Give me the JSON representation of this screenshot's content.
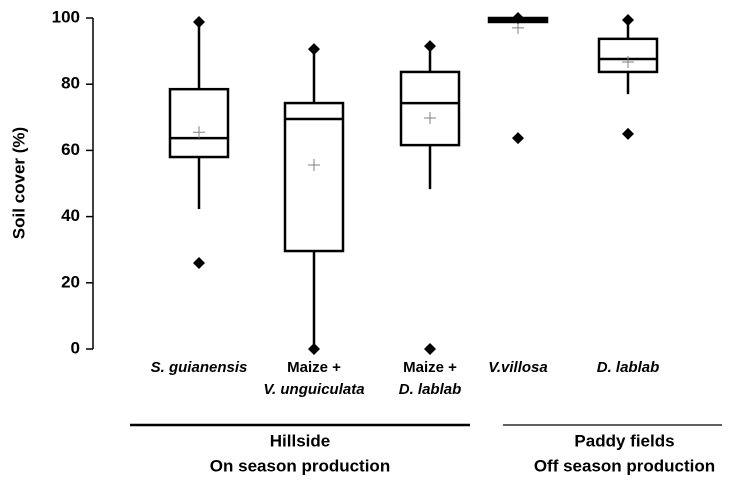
{
  "chart_data": {
    "type": "box",
    "y_label": "Soil cover (%)",
    "ylim": [
      0,
      100
    ],
    "yticks": [
      0,
      20,
      40,
      60,
      80,
      100
    ],
    "color": "#000000",
    "mean_color": "#808080",
    "categories": [
      [
        "S. guianensis"
      ],
      [
        "Maize +",
        "V. unguiculata"
      ],
      [
        "Maize +",
        "D. lablab"
      ],
      [
        "V.villosa"
      ],
      [
        "D. lablab"
      ]
    ],
    "whisker_low": [
      42.3,
      0,
      48.3,
      98.5,
      77
    ],
    "q1": [
      58,
      29.6,
      61.6,
      98.8,
      83.7
    ],
    "median": [
      63.7,
      69.5,
      74.3,
      99.4,
      87.6
    ],
    "q3": [
      78.5,
      74.3,
      83.7,
      100,
      93.7
    ],
    "whisker_high": [
      98.8,
      90.6,
      91.5,
      100,
      99.4
    ],
    "mean": [
      65.5,
      55.6,
      69.8,
      97,
      86.7
    ],
    "points": [
      [
        98.8,
        26
      ],
      [
        90.6,
        0
      ],
      [
        91.5,
        0
      ],
      [
        100,
        63.7
      ],
      [
        99.4,
        65
      ]
    ],
    "groups": [
      [
        "Hillside",
        "On season production"
      ],
      [
        "Paddy fields",
        "Off season production"
      ]
    ]
  }
}
